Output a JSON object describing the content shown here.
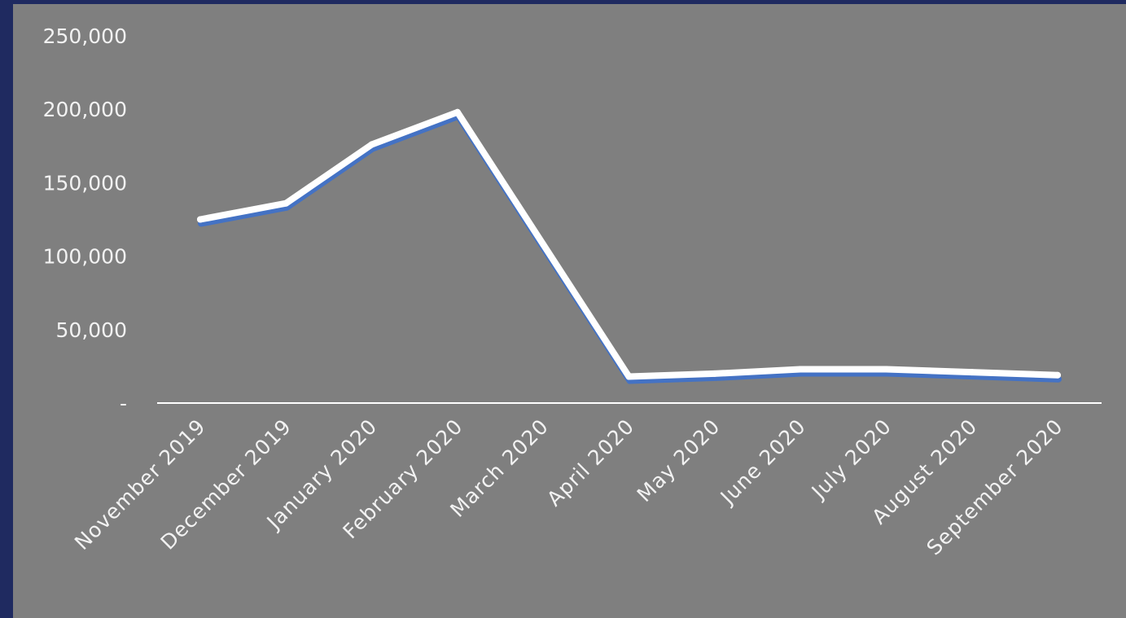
{
  "colors": {
    "frame": "#1f2a60",
    "plot_background": "#7f7f7f",
    "line": "#ffffff",
    "line_shadow": "#4472c4",
    "text": "#f2f2f2",
    "axis": "#ffffff"
  },
  "chart_data": {
    "type": "line",
    "title": "",
    "xlabel": "",
    "ylabel": "",
    "categories": [
      "November 2019",
      "December 2019",
      "January 2020",
      "February 2020",
      "March 2020",
      "April 2020",
      "May 2020",
      "June 2020",
      "July 2020",
      "August 2020",
      "September 2020"
    ],
    "series": [
      {
        "values": [
          125000,
          136000,
          176000,
          198000,
          108000,
          18000,
          20000,
          23000,
          23000,
          21000,
          19000
        ]
      }
    ],
    "ylim": [
      0,
      250000
    ],
    "y_ticks": [
      0,
      50000,
      100000,
      150000,
      200000,
      250000
    ],
    "y_tick_labels": [
      "-",
      "50,000",
      "100,000",
      "150,000",
      "200,000",
      "250,000"
    ],
    "grid": false,
    "drop_lines": true,
    "legend": "none"
  }
}
